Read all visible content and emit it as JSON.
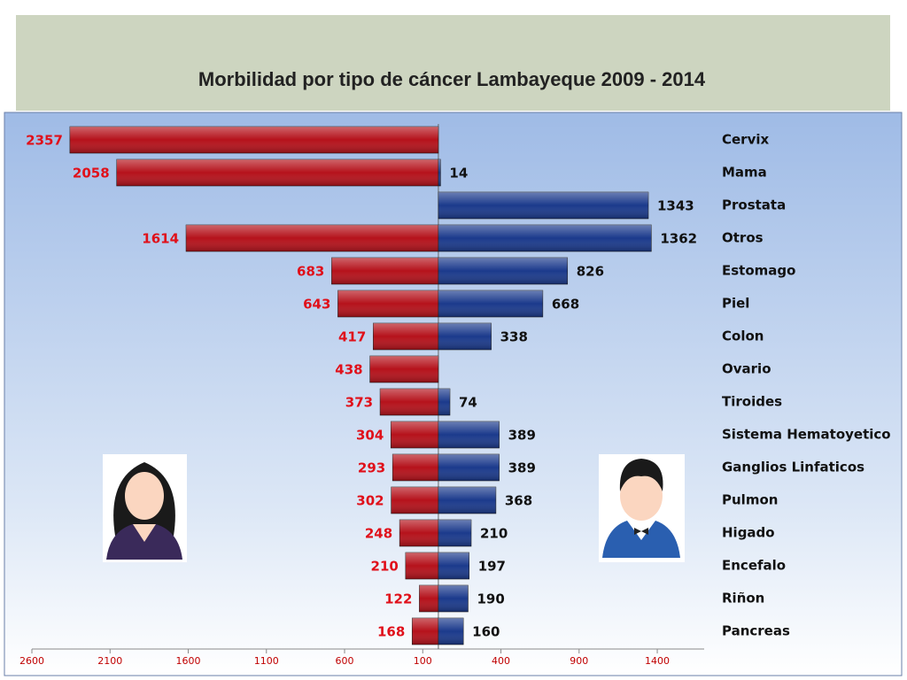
{
  "chart_data": {
    "type": "bar",
    "orientation": "horizontal",
    "title": "Morbilidad por tipo de cáncer Lambayeque 2009 - 2014",
    "categories": [
      "Cervix",
      "Mama",
      "Prostata",
      "Otros",
      "Estomago",
      "Piel",
      "Colon",
      "Ovario",
      "Tiroides",
      "Sistema Hematoyetico",
      "Ganglios Linfaticos",
      "Pulmon",
      "Higado",
      "Encefalo",
      "Riñon",
      "Pancreas"
    ],
    "series": [
      {
        "color": "#b5121b",
        "label_color": "#e0101a",
        "values": [
          -2357,
          -2058,
          null,
          -1614,
          -683,
          -643,
          -417,
          -438,
          -373,
          -304,
          -293,
          -302,
          -248,
          -210,
          -122,
          -168
        ],
        "value_labels": [
          "2357",
          "2058",
          null,
          "1614",
          "683",
          "643",
          "417",
          "438",
          "373",
          "304",
          "293",
          "302",
          "248",
          "210",
          "122",
          "168"
        ]
      },
      {
        "color": "#1b3a8c",
        "label_color": "#111111",
        "values": [
          null,
          14,
          1343,
          1362,
          826,
          668,
          338,
          null,
          74,
          389,
          389,
          368,
          210,
          197,
          190,
          160
        ]
      }
    ],
    "xlim": [
      -2600,
      1700
    ],
    "xticks": [
      {
        "value": -2600,
        "label": "2600"
      },
      {
        "value": -2100,
        "label": "2100"
      },
      {
        "value": -1600,
        "label": "1600"
      },
      {
        "value": -1100,
        "label": "1100"
      },
      {
        "value": -600,
        "label": "600"
      },
      {
        "value": -100,
        "label": "100"
      },
      400,
      900,
      1400
    ]
  }
}
